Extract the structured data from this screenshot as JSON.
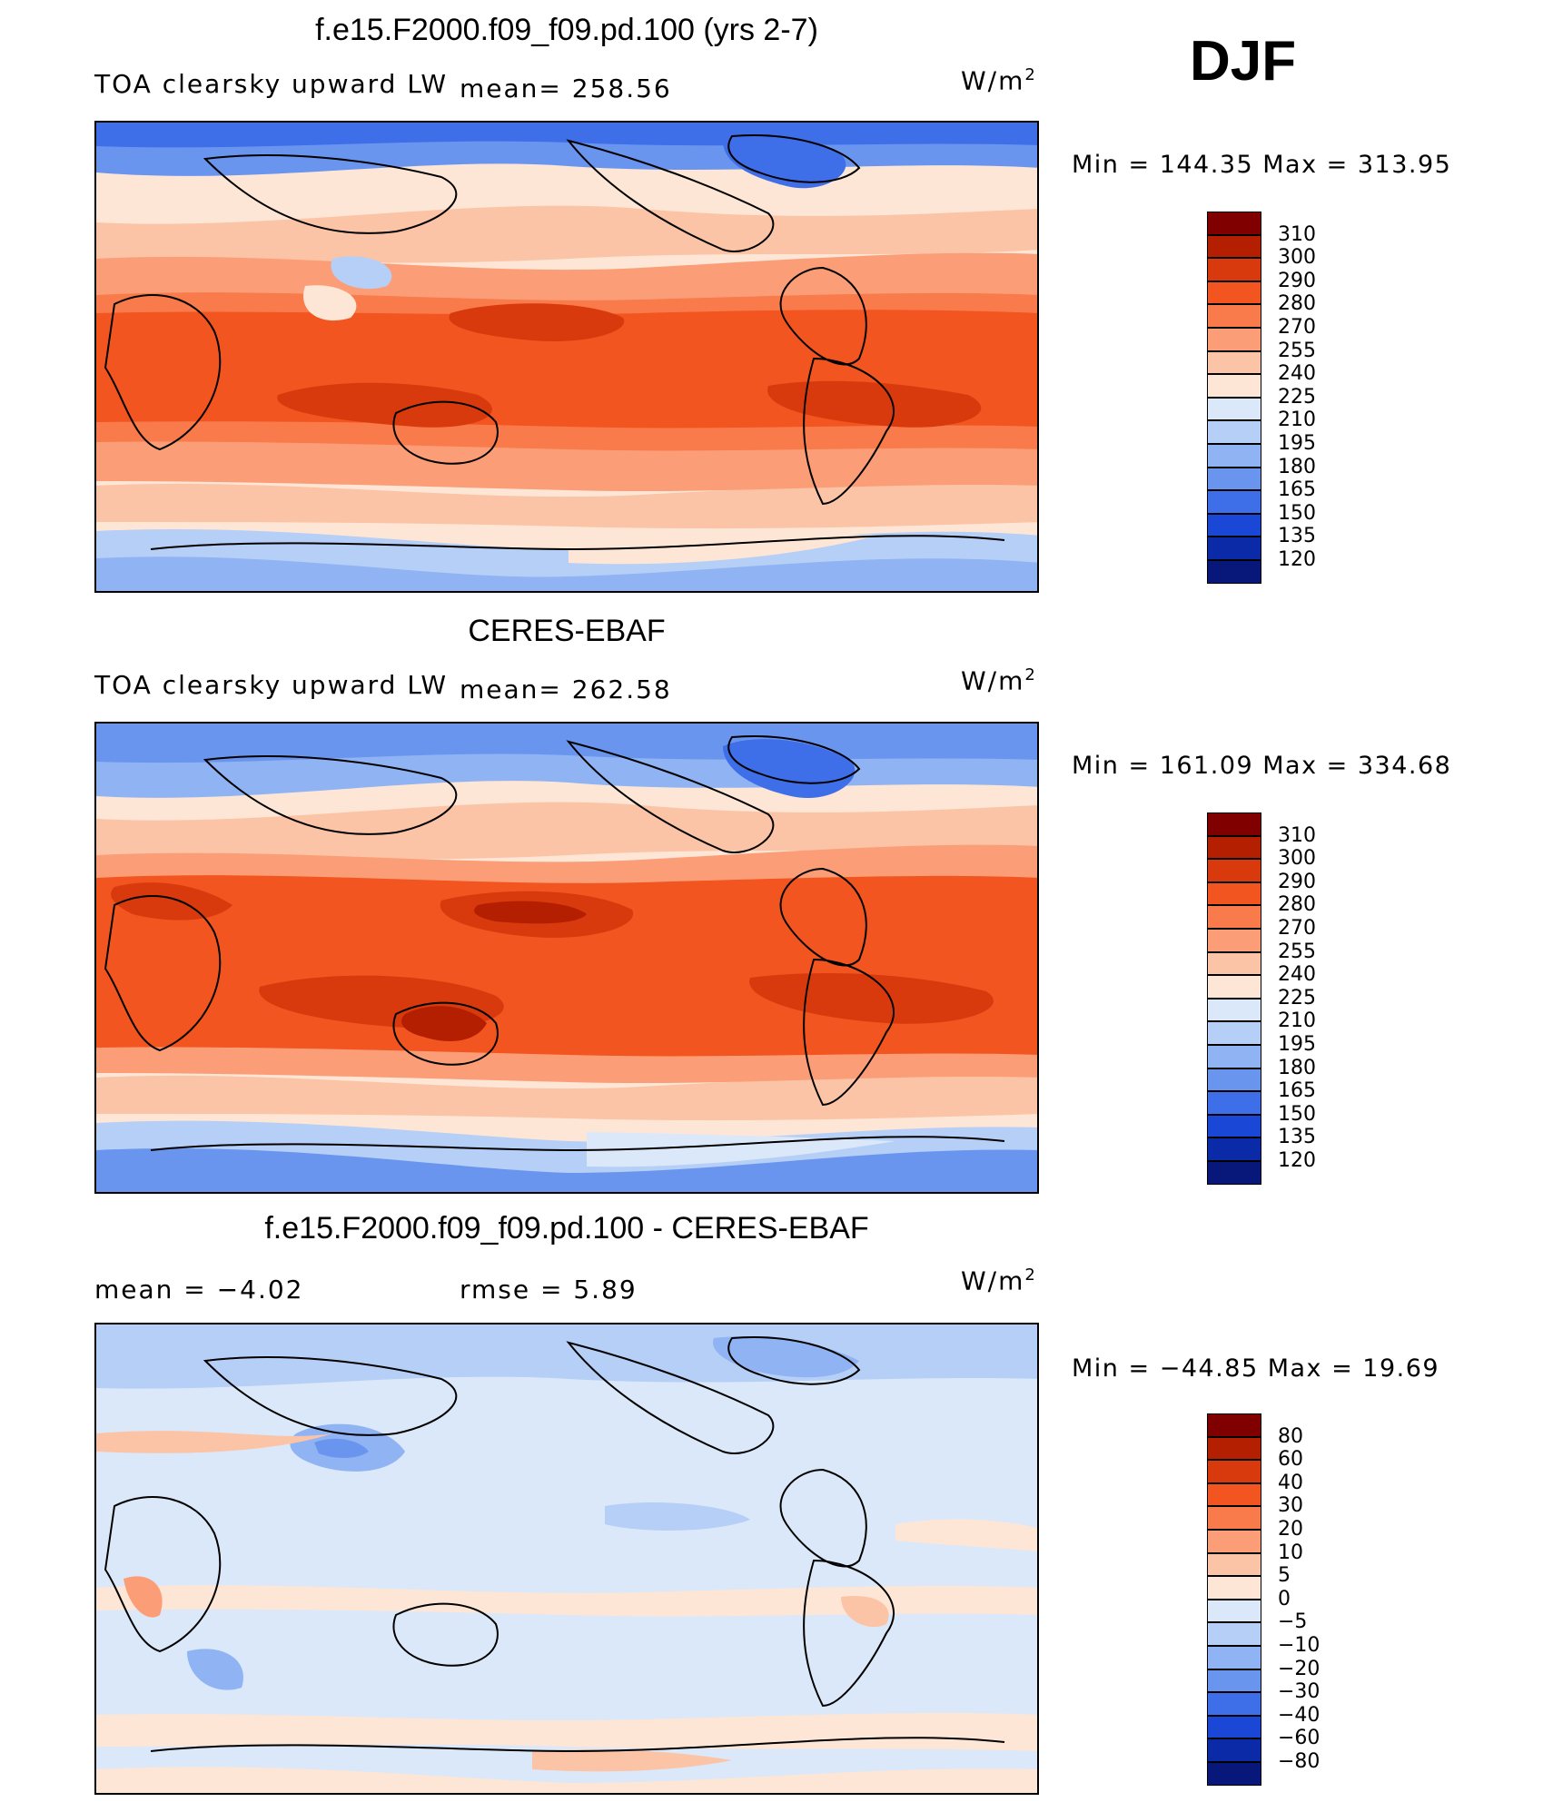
{
  "season": "DJF",
  "panels": [
    {
      "id": "model",
      "title": "f.e15.F2000.f09_f09.pd.100 (yrs 2-7)",
      "variable": "TOA clearsky upward LW",
      "stat1": "mean=  258.56",
      "stat2": "",
      "unit_base": "W/m",
      "unit_exp": "2",
      "minmax": "Min  =  144.35  Max  =  313.95",
      "colorbar": {
        "levels": [
          "310",
          "300",
          "290",
          "280",
          "270",
          "255",
          "240",
          "225",
          "210",
          "195",
          "180",
          "165",
          "150",
          "135",
          "120"
        ],
        "colors": [
          "#800000",
          "#b31f00",
          "#d93a0d",
          "#f2551f",
          "#f97a4a",
          "#fb9e78",
          "#fcc4a6",
          "#fde6d6",
          "#dbe8fa",
          "#b6cff7",
          "#8fb3f3",
          "#6a95ef",
          "#3e6ee8",
          "#1a47d6",
          "#0b2aa8",
          "#08177a"
        ]
      }
    },
    {
      "id": "obs",
      "title": "CERES-EBAF",
      "variable": "TOA clearsky upward LW",
      "stat1": "mean=  262.58",
      "stat2": "",
      "unit_base": "W/m",
      "unit_exp": "2",
      "minmax": "Min  =  161.09  Max  =  334.68",
      "colorbar": {
        "levels": [
          "310",
          "300",
          "290",
          "280",
          "270",
          "255",
          "240",
          "225",
          "210",
          "195",
          "180",
          "165",
          "150",
          "135",
          "120"
        ],
        "colors": [
          "#800000",
          "#b31f00",
          "#d93a0d",
          "#f2551f",
          "#f97a4a",
          "#fb9e78",
          "#fcc4a6",
          "#fde6d6",
          "#dbe8fa",
          "#b6cff7",
          "#8fb3f3",
          "#6a95ef",
          "#3e6ee8",
          "#1a47d6",
          "#0b2aa8",
          "#08177a"
        ]
      }
    },
    {
      "id": "diff",
      "title": "f.e15.F2000.f09_f09.pd.100 - CERES-EBAF",
      "variable": "",
      "stat1": "mean  =    −4.02",
      "stat2": "rmse  =     5.89",
      "unit_base": "W/m",
      "unit_exp": "2",
      "minmax": "Min  =  −44.85  Max  =    19.69",
      "colorbar": {
        "levels": [
          "80",
          "60",
          "40",
          "30",
          "20",
          "10",
          "5",
          "0",
          "−5",
          "−10",
          "−20",
          "−30",
          "−40",
          "−60",
          "−80"
        ],
        "colors": [
          "#800000",
          "#b31f00",
          "#d93a0d",
          "#f2551f",
          "#f97a4a",
          "#fb9e78",
          "#fcc4a6",
          "#fde6d6",
          "#dbe8fa",
          "#b6cff7",
          "#8fb3f3",
          "#6a95ef",
          "#3e6ee8",
          "#1a47d6",
          "#0b2aa8",
          "#08177a"
        ]
      }
    }
  ]
}
